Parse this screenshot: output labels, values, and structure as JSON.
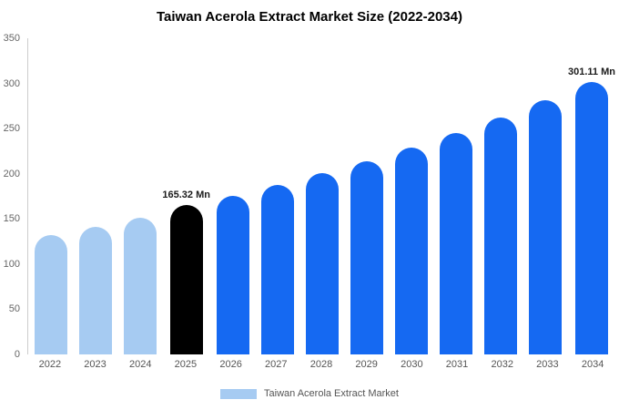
{
  "title": "Taiwan Acerola Extract Market Size (2022-2034)",
  "legend": {
    "label": "Taiwan Acerola Extract Market",
    "swatch_color": "#a6cbf2"
  },
  "colors": {
    "light_blue": "#a6cbf2",
    "bright_blue": "#1569f2",
    "highlight_black": "#000000"
  },
  "chart_data": {
    "type": "bar",
    "title": "Taiwan Acerola Extract Market Size (2022-2034)",
    "xlabel": "",
    "ylabel": "",
    "ylim": [
      0,
      350
    ],
    "yticks": [
      0,
      50,
      100,
      150,
      200,
      250,
      300,
      350
    ],
    "grid": false,
    "legend_position": "bottom",
    "categories": [
      "2022",
      "2023",
      "2024",
      "2025",
      "2026",
      "2027",
      "2028",
      "2029",
      "2030",
      "2031",
      "2032",
      "2033",
      "2034"
    ],
    "values": [
      132,
      141,
      151,
      165.32,
      176,
      188,
      201,
      214,
      229,
      245,
      262,
      281,
      301.11
    ],
    "bar_colors": [
      "#a6cbf2",
      "#a6cbf2",
      "#a6cbf2",
      "#000000",
      "#1569f2",
      "#1569f2",
      "#1569f2",
      "#1569f2",
      "#1569f2",
      "#1569f2",
      "#1569f2",
      "#1569f2",
      "#1569f2"
    ],
    "annotations": [
      {
        "index": 3,
        "text": "165.32 Mn"
      },
      {
        "index": 12,
        "text": "301.11 Mn"
      }
    ]
  }
}
